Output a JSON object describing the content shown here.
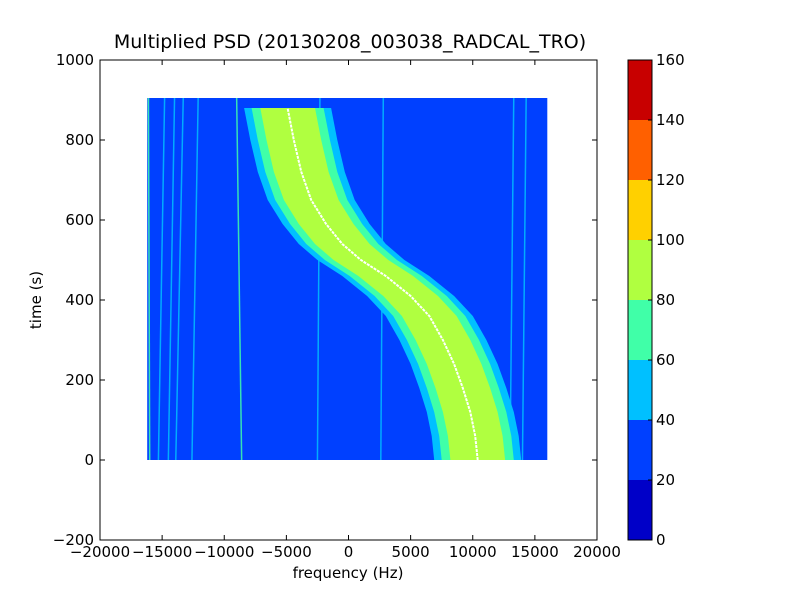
{
  "chart_data": {
    "type": "heatmap",
    "title": "Multiplied PSD (20130208_003038_RADCAL_TRO)",
    "xlabel": "frequency (Hz)",
    "ylabel": "time (s)",
    "xlim": [
      -20000,
      20000
    ],
    "ylim": [
      -200,
      1000
    ],
    "x_ticks": [
      -20000,
      -15000,
      -10000,
      -5000,
      0,
      5000,
      10000,
      15000,
      20000
    ],
    "x_tick_labels": [
      "−20000",
      "−15000",
      "−10000",
      "−5000",
      "0",
      "5000",
      "10000",
      "15000",
      "20000"
    ],
    "y_ticks": [
      -200,
      0,
      200,
      400,
      600,
      800,
      1000
    ],
    "y_tick_labels": [
      "−200",
      "0",
      "200",
      "400",
      "600",
      "800",
      "1000"
    ],
    "data_extent": {
      "x": [
        -16200,
        16000
      ],
      "y": [
        0,
        905
      ]
    },
    "background_level_color": "#0040ff",
    "feature_curve": {
      "description_points_freq_time": [
        [
          10400,
          0
        ],
        [
          10200,
          60
        ],
        [
          9800,
          120
        ],
        [
          9200,
          180
        ],
        [
          8500,
          240
        ],
        [
          7600,
          300
        ],
        [
          6500,
          360
        ],
        [
          5000,
          410
        ],
        [
          3000,
          460
        ],
        [
          1000,
          500
        ],
        [
          -500,
          540
        ],
        [
          -1800,
          590
        ],
        [
          -3000,
          650
        ],
        [
          -3800,
          720
        ],
        [
          -4400,
          800
        ],
        [
          -4900,
          880
        ]
      ],
      "bands": [
        {
          "min": 60,
          "max": 80,
          "half_width": 3500,
          "color": "#00c0ff"
        },
        {
          "min": 80,
          "max": 100,
          "half_width": 2900,
          "color": "#40ffa8"
        },
        {
          "min": 100,
          "max": 120,
          "half_width": 2200,
          "color": "#b0ff40"
        }
      ],
      "center_line_color": "#ffffff"
    },
    "vertical_lines": [
      {
        "x0": -16000,
        "x1": -16100,
        "color": "#40ffa8"
      },
      {
        "x0": -15300,
        "x1": -14800,
        "color": "#00c0ff"
      },
      {
        "x0": -14500,
        "x1": -14000,
        "color": "#00c0ff"
      },
      {
        "x0": -13900,
        "x1": -13300,
        "color": "#00c0ff"
      },
      {
        "x0": -12600,
        "x1": -12100,
        "color": "#00c0ff"
      },
      {
        "x0": -8600,
        "x1": -9000,
        "color": "#40ffa8"
      },
      {
        "x0": -2500,
        "x1": -2300,
        "color": "#00c0ff"
      },
      {
        "x0": 2600,
        "x1": 2800,
        "color": "#00c0ff"
      },
      {
        "x0": 13000,
        "x1": 13300,
        "color": "#00c0ff"
      },
      {
        "x0": 14000,
        "x1": 14300,
        "color": "#00c0ff"
      }
    ],
    "colorbar": {
      "levels": [
        0,
        20,
        40,
        60,
        80,
        100,
        120,
        140,
        160
      ],
      "tick_labels": [
        "0",
        "20",
        "40",
        "60",
        "80",
        "100",
        "120",
        "140",
        "160"
      ],
      "colors": [
        "#0000c8",
        "#0040ff",
        "#00c0ff",
        "#40ffa8",
        "#b0ff40",
        "#ffd000",
        "#ff6000",
        "#c80000"
      ]
    }
  }
}
